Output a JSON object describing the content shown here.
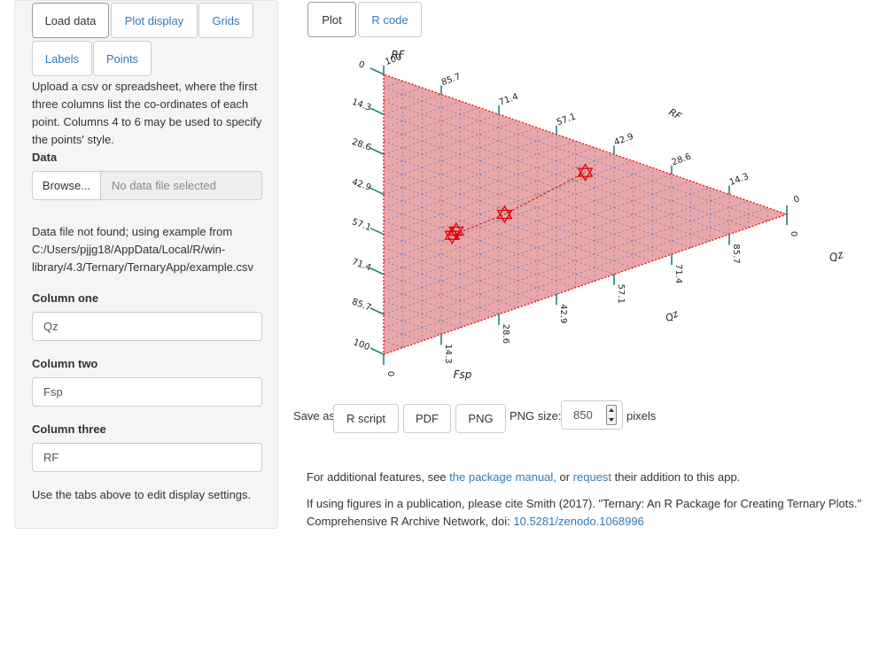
{
  "sidebar": {
    "tabs": [
      "Load data",
      "Plot display",
      "Grids",
      "Labels",
      "Points"
    ],
    "instructions": [
      "Upload a csv or spreadsheet, where the first",
      "three columns list the co-ordinates of each",
      "point. Columns 4 to 6 may be used to specify",
      "the points' style."
    ],
    "data_label": "Data",
    "browse_label": "Browse...",
    "file_placeholder": "No data file selected",
    "status_lines": [
      "Data file not found; using example from",
      "C:/Users/pjjg18/AppData/Local/R/win-",
      "library/4.3/Ternary/TernaryApp/example.csv"
    ],
    "column_one_label": "Column one",
    "column_one_value": "Qz",
    "column_two_label": "Column two",
    "column_two_value": "Fsp",
    "column_three_label": "Column three",
    "column_three_value": "RF",
    "hint": "Use the tabs above to edit display settings."
  },
  "main": {
    "tabs": [
      "Plot",
      "R code"
    ],
    "save_as_label": "Save as:",
    "save_buttons": [
      "R script",
      "PDF",
      "PNG"
    ],
    "png_size_label": "PNG size:",
    "png_size_value": "850",
    "pixels_label": "pixels",
    "footer1_pre": "For additional features, see ",
    "footer1_link1": "the package manual,",
    "footer1_mid": " or ",
    "footer1_link2": "request",
    "footer1_post": " their addition to this app.",
    "footer2_line1": "If using figures in a publication, please cite Smith (2017). \"Ternary: An R Package for Creating Ternary Plots.\"",
    "footer2_line2_pre": "Comprehensive R Archive Network, doi: ",
    "footer2_doi": "10.5281/zenodo.1068996"
  },
  "chart_data": {
    "type": "scatter",
    "subtype": "ternary",
    "axes": [
      "Qz",
      "Fsp",
      "RF"
    ],
    "axis_titles": {
      "top": "RF",
      "bottom": "Fsp",
      "right_upper": "RF",
      "right_lower": "Qz",
      "far_right": "Qz"
    },
    "ticks": [
      "0",
      "14.3",
      "28.6",
      "42.9",
      "57.1",
      "71.4",
      "85.7",
      "100"
    ],
    "points": [
      {
        "Qz": 0.5,
        "Fsp": 0.1,
        "RF": 0.4
      },
      {
        "Qz": 0.3,
        "Fsp": 0.35,
        "RF": 0.35
      },
      {
        "Qz": 0.17,
        "Fsp": 0.49,
        "RF": 0.34
      },
      {
        "Qz": 0.18,
        "Fsp": 0.47,
        "RF": 0.35
      }
    ],
    "colors": {
      "fill": "#e8a7a8",
      "border": "#ff0000",
      "grid": "#4060c0",
      "ticks": "#208080",
      "points": "#e00000"
    }
  }
}
